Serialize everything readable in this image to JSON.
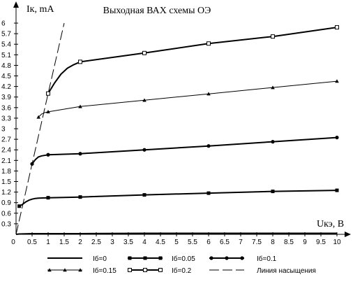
{
  "chart_data": {
    "type": "line",
    "title": "Выходная ВАХ схемы ОЭ",
    "xlabel": "Uкэ, В",
    "ylabel": "Iк, mA",
    "xlim": [
      0,
      10
    ],
    "ylim": [
      0,
      6.1
    ],
    "x_ticks": [
      0,
      0.5,
      1,
      1.5,
      2,
      2.5,
      3,
      3.5,
      4,
      4.5,
      5,
      5.5,
      6,
      6.5,
      7,
      7.5,
      8,
      8.5,
      9,
      9.5,
      10
    ],
    "x_tick_labels": [
      "0",
      "0.5",
      "1",
      "1.5",
      "2",
      "2.5",
      "3",
      "3.5",
      "4",
      "4.5",
      "5",
      "5.5",
      "6",
      "6.5",
      "7",
      "7.5",
      "8",
      "8.5",
      "9",
      "9.5",
      "10"
    ],
    "y_ticks": [
      0,
      0.3,
      0.6,
      0.9,
      1.2,
      1.5,
      1.8,
      2.1,
      2.4,
      2.7,
      3,
      3.3,
      3.6,
      3.9,
      4.2,
      4.5,
      4.8,
      5.1,
      5.4,
      5.7,
      6
    ],
    "y_tick_labels": [
      "0",
      "0.3",
      "0.6",
      "0.9",
      "1.2",
      "1.5",
      "1.8",
      "2.1",
      "2.4",
      "2.7",
      "3",
      "3.3",
      "3.6",
      "3.9",
      "4.2",
      "4.5",
      "4.8",
      "5.1",
      "5.4",
      "5.7",
      "6"
    ],
    "grid": false,
    "legend_position": "bottom",
    "series": [
      {
        "name": "Iб=0",
        "marker": "none",
        "line_width": 2,
        "x": [
          0,
          0.1,
          0.5,
          1,
          2,
          4,
          6,
          8,
          10
        ],
        "y": [
          0,
          0.01,
          0.02,
          0.02,
          0.02,
          0.03,
          0.03,
          0.03,
          0.03
        ],
        "marker_x": []
      },
      {
        "name": "Iб=0.05",
        "marker": "filled-square",
        "line_width": 2,
        "x": [
          0.1,
          0.2,
          0.3,
          0.4,
          0.5,
          0.6,
          0.7,
          1,
          2,
          4,
          6,
          8,
          10
        ],
        "y": [
          0.8,
          0.85,
          0.92,
          0.97,
          1.0,
          1.02,
          1.03,
          1.04,
          1.06,
          1.12,
          1.17,
          1.22,
          1.25
        ],
        "marker_x": [
          0.1,
          1,
          2,
          4,
          6,
          8,
          10
        ]
      },
      {
        "name": "Iб=0.1",
        "marker": "filled-circle",
        "line_width": 2,
        "x": [
          0.5,
          0.6,
          0.7,
          0.8,
          1,
          2,
          4,
          6,
          8,
          10
        ],
        "y": [
          2.0,
          2.12,
          2.2,
          2.23,
          2.26,
          2.29,
          2.4,
          2.51,
          2.63,
          2.75
        ],
        "marker_x": [
          0.5,
          1,
          2,
          4,
          6,
          8,
          10
        ]
      },
      {
        "name": "Iб=0.15",
        "marker": "filled-triangle",
        "line_width": 1,
        "x": [
          0.7,
          0.8,
          0.9,
          1,
          2,
          4,
          6,
          8,
          10
        ],
        "y": [
          3.33,
          3.42,
          3.46,
          3.48,
          3.63,
          3.81,
          3.99,
          4.17,
          4.35
        ],
        "marker_x": [
          0.7,
          1,
          2,
          4,
          6,
          8,
          10
        ]
      },
      {
        "name": "Iб=0.2",
        "marker": "open-square",
        "line_width": 2,
        "x": [
          1,
          1.2,
          1.4,
          1.6,
          1.8,
          2,
          4,
          6,
          8,
          10
        ],
        "y": [
          4.0,
          4.3,
          4.55,
          4.72,
          4.82,
          4.9,
          5.15,
          5.42,
          5.62,
          5.88
        ],
        "marker_x": [
          1,
          2,
          4,
          6,
          8,
          10
        ]
      },
      {
        "name": "Линия насыщения",
        "marker": "none",
        "line_width": 1,
        "dashed": true,
        "x": [
          0,
          0.5,
          1,
          1.5
        ],
        "y": [
          0,
          2.0,
          4.0,
          6.0
        ],
        "marker_x": []
      }
    ]
  }
}
